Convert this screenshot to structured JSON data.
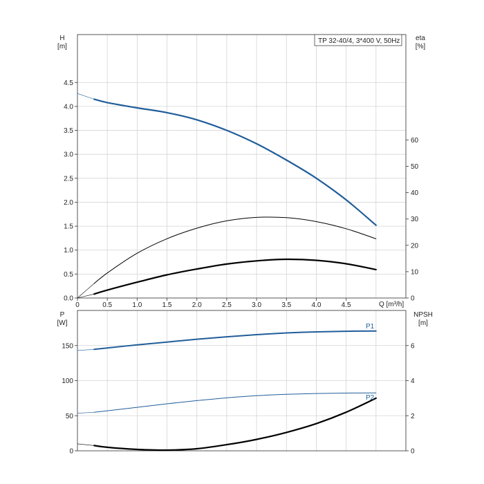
{
  "chart_data": [
    {
      "id": "upper",
      "type": "line",
      "title": "TP 32-40/4, 3*400 V, 50Hz",
      "xlabel": "Q [m³/h]",
      "ylabel_left": [
        "H",
        "[m]"
      ],
      "ylabel_right": [
        "eta",
        "[%]"
      ],
      "xlim": [
        0,
        5.5
      ],
      "ylim_left": [
        0,
        5.5
      ],
      "ylim_right": [
        0,
        100
      ],
      "x_ticks": [
        "0",
        "0.5",
        "1.0",
        "1.5",
        "2.0",
        "2.5",
        "3.0",
        "3.5",
        "4.0",
        "4.5"
      ],
      "x_tick_values": [
        0,
        0.5,
        1.0,
        1.5,
        2.0,
        2.5,
        3.0,
        3.5,
        4.0,
        4.5
      ],
      "y_left_ticks": [
        "0.0",
        "0.5",
        "1.0",
        "1.5",
        "2.0",
        "2.5",
        "3.0",
        "3.5",
        "4.0",
        "4.5"
      ],
      "y_left_tick_values": [
        0,
        0.5,
        1.0,
        1.5,
        2.0,
        2.5,
        3.0,
        3.5,
        4.0,
        4.5
      ],
      "y_right_ticks": [
        "0",
        "10",
        "20",
        "30",
        "40",
        "50",
        "60"
      ],
      "y_right_tick_values": [
        0,
        10,
        20,
        30,
        40,
        50,
        60
      ],
      "grid": true,
      "series": [
        {
          "key": "H",
          "axis": "left",
          "color": "#1f5d99",
          "width": 2.2,
          "x": [
            0.28,
            0.5,
            1.0,
            1.5,
            2.0,
            2.5,
            3.0,
            3.5,
            4.0,
            4.5,
            5.0
          ],
          "y": [
            4.15,
            4.08,
            3.97,
            3.87,
            3.72,
            3.5,
            3.22,
            2.88,
            2.5,
            2.05,
            1.52
          ],
          "lead_x": [
            0,
            0.28
          ],
          "lead_y": [
            4.27,
            4.15
          ]
        },
        {
          "key": "eta-total",
          "axis": "right",
          "color": "#000000",
          "width": 1.0,
          "x": [
            0.28,
            0.5,
            1.0,
            1.5,
            2.0,
            2.5,
            3.0,
            3.5,
            4.0,
            4.5,
            5.0
          ],
          "y": [
            5.5,
            9.5,
            17,
            22.5,
            26.5,
            29.3,
            30.6,
            30.5,
            29,
            26.3,
            22.5
          ],
          "lead_x": [
            0,
            0.28
          ],
          "lead_y": [
            0,
            5.5
          ]
        },
        {
          "key": "eta-hydraulic",
          "axis": "right",
          "color": "#000000",
          "width": 2.2,
          "x": [
            0.28,
            0.5,
            1.0,
            1.5,
            2.0,
            2.5,
            3.0,
            3.5,
            4.0,
            4.5,
            5.0
          ],
          "y": [
            1.5,
            3,
            6,
            8.8,
            11,
            12.9,
            14.1,
            14.7,
            14.3,
            13,
            10.8
          ],
          "lead_x": [
            0,
            0.28
          ],
          "lead_y": [
            0,
            1.5
          ]
        }
      ]
    },
    {
      "id": "lower",
      "type": "line",
      "ylabel_left": [
        "P",
        "[W]"
      ],
      "ylabel_right": [
        "NPSH",
        "[m]"
      ],
      "xlim": [
        0,
        5.5
      ],
      "ylim_left": [
        0,
        200
      ],
      "ylim_right": [
        0,
        8
      ],
      "y_left_ticks": [
        "0",
        "50",
        "100",
        "150"
      ],
      "y_left_tick_values": [
        0,
        50,
        100,
        150
      ],
      "y_right_ticks": [
        "0",
        "2",
        "4",
        "6"
      ],
      "y_right_tick_values": [
        0,
        2,
        4,
        6
      ],
      "grid": true,
      "series": [
        {
          "key": "P1",
          "name": "P1",
          "axis": "left",
          "color": "#1f5d99",
          "width": 2.0,
          "x": [
            0.28,
            0.5,
            1.0,
            1.5,
            2.0,
            2.5,
            3.0,
            3.5,
            4.0,
            4.5,
            5.0
          ],
          "y": [
            144.5,
            146.5,
            151,
            155,
            159,
            162.5,
            165.5,
            168,
            169.5,
            170.3,
            170.7
          ],
          "lead_x": [
            0,
            0.28
          ],
          "lead_y": [
            143,
            144.5
          ]
        },
        {
          "key": "P2",
          "name": "P2",
          "axis": "left",
          "color": "#1f5d99",
          "width": 1.0,
          "x": [
            0.28,
            0.5,
            1.0,
            1.5,
            2.0,
            2.5,
            3.0,
            3.5,
            4.0,
            4.5,
            5.0
          ],
          "y": [
            55,
            57,
            62,
            67,
            71.5,
            75.5,
            78.5,
            80.5,
            81.7,
            82.3,
            82.5
          ],
          "lead_x": [
            0,
            0.28
          ],
          "lead_y": [
            53.5,
            55
          ]
        },
        {
          "key": "NPSH",
          "axis": "right",
          "color": "#000000",
          "width": 2.2,
          "x": [
            0.28,
            0.5,
            1.0,
            1.5,
            2.0,
            2.5,
            3.0,
            3.5,
            4.0,
            4.5,
            5.0
          ],
          "y": [
            0.3,
            0.2,
            0.08,
            0.04,
            0.12,
            0.35,
            0.65,
            1.05,
            1.55,
            2.2,
            3.0
          ],
          "lead_x": [
            0,
            0.28
          ],
          "lead_y": [
            0.4,
            0.3
          ]
        }
      ]
    }
  ]
}
